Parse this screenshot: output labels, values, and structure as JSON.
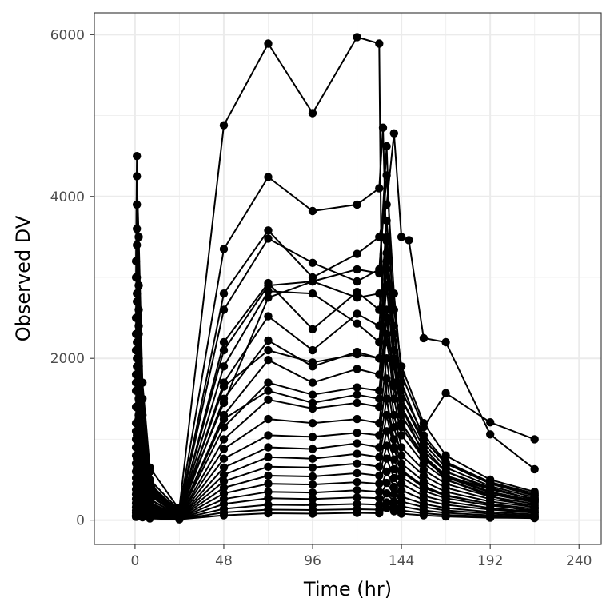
{
  "chart_data": {
    "type": "line",
    "title": "",
    "xlabel": "Time (hr)",
    "ylabel": "Observed DV",
    "xlim": [
      -22,
      252
    ],
    "ylim": [
      -300,
      6270
    ],
    "xticks": [
      0,
      48,
      96,
      144,
      192,
      240
    ],
    "xtick_labels": [
      "0",
      "48",
      "96",
      "144",
      "192",
      "240"
    ],
    "yticks": [
      0,
      2000,
      4000,
      6000
    ],
    "ytick_labels": [
      "0",
      "2000",
      "4000",
      "6000"
    ],
    "grid": true,
    "legend": "none",
    "series_color": "#000000",
    "series": [
      {
        "x": [
          0.5,
          1,
          2,
          4,
          8,
          12,
          24,
          48,
          72,
          96,
          120,
          132,
          133,
          134,
          136,
          140,
          144,
          156,
          168,
          192,
          216
        ],
        "y": [
          3200,
          4500,
          2900,
          1500,
          600,
          300,
          150,
          4880,
          5890,
          5030,
          5970,
          5890,
          3500,
          2600,
          1500,
          900,
          600,
          400,
          300,
          200,
          100
        ]
      },
      {
        "x": [
          0.5,
          1,
          2,
          4,
          8,
          24,
          48,
          72,
          96,
          120,
          132,
          134,
          136,
          140,
          144,
          156,
          168,
          192,
          216
        ],
        "y": [
          2500,
          3900,
          2600,
          1300,
          500,
          120,
          3350,
          4240,
          3820,
          3900,
          4100,
          4850,
          3200,
          2100,
          1400,
          800,
          500,
          300,
          150
        ]
      },
      {
        "x": [
          0.5,
          1,
          2,
          4,
          8,
          24,
          48,
          72,
          96,
          120,
          132,
          136,
          140,
          144,
          148,
          156,
          168,
          192,
          216
        ],
        "y": [
          2100,
          3400,
          2300,
          1200,
          450,
          100,
          2800,
          3580,
          3000,
          3290,
          3500,
          3900,
          4780,
          3500,
          3460,
          2250,
          2200,
          1060,
          630
        ]
      },
      {
        "x": [
          0.5,
          1,
          2,
          4,
          8,
          24,
          48,
          72,
          96,
          120,
          132,
          136,
          140,
          144,
          156,
          168,
          192,
          216
        ],
        "y": [
          1800,
          3000,
          2000,
          1000,
          400,
          90,
          2600,
          3480,
          3180,
          2950,
          3100,
          4260,
          2800,
          1800,
          1150,
          1570,
          1210,
          1000
        ]
      },
      {
        "x": [
          0.5,
          1,
          2,
          4,
          8,
          24,
          48,
          72,
          96,
          120,
          132,
          136,
          140,
          144,
          156,
          168,
          192,
          216
        ],
        "y": [
          1600,
          2700,
          1800,
          900,
          350,
          80,
          2200,
          2930,
          2360,
          2820,
          2600,
          3500,
          2000,
          1400,
          900,
          600,
          400,
          250
        ]
      },
      {
        "x": [
          0.5,
          1,
          2,
          4,
          8,
          24,
          48,
          72,
          96,
          120,
          132,
          136,
          140,
          144,
          156,
          168,
          192,
          216
        ],
        "y": [
          1400,
          2500,
          1600,
          800,
          320,
          70,
          1900,
          2830,
          2800,
          2430,
          2200,
          3300,
          2400,
          1700,
          1000,
          700,
          450,
          300
        ]
      },
      {
        "x": [
          0.5,
          1,
          2,
          4,
          8,
          24,
          48,
          72,
          96,
          120,
          132,
          136,
          140,
          144,
          156,
          168,
          192,
          216
        ],
        "y": [
          1200,
          2200,
          1500,
          700,
          300,
          60,
          1700,
          2520,
          2100,
          2550,
          2400,
          3700,
          2600,
          1900,
          1200,
          800,
          500,
          350
        ]
      },
      {
        "x": [
          0.5,
          1,
          2,
          4,
          8,
          24,
          48,
          72,
          96,
          120,
          132,
          136,
          140,
          144,
          156,
          168,
          192,
          216
        ],
        "y": [
          1000,
          2000,
          1300,
          600,
          250,
          60,
          1500,
          2220,
          1900,
          2080,
          2000,
          3100,
          2100,
          1500,
          950,
          650,
          420,
          280
        ]
      },
      {
        "x": [
          0.5,
          1,
          2,
          4,
          8,
          24,
          48,
          72,
          96,
          120,
          132,
          136,
          140,
          144,
          156,
          168,
          192,
          216
        ],
        "y": [
          900,
          1800,
          1200,
          550,
          220,
          50,
          1300,
          1980,
          1700,
          1870,
          1800,
          2900,
          1900,
          1300,
          850,
          600,
          380,
          260
        ]
      },
      {
        "x": [
          0.5,
          1,
          2,
          4,
          8,
          24,
          48,
          72,
          96,
          120,
          132,
          136,
          140,
          144,
          156,
          168,
          192,
          216
        ],
        "y": [
          800,
          1600,
          1100,
          500,
          200,
          50,
          1150,
          1700,
          1550,
          1640,
          1600,
          2600,
          1700,
          1200,
          780,
          550,
          350,
          240
        ]
      },
      {
        "x": [
          0.5,
          1,
          2,
          4,
          8,
          24,
          48,
          72,
          96,
          120,
          132,
          136,
          140,
          144,
          156,
          168,
          192,
          216
        ],
        "y": [
          700,
          1400,
          950,
          450,
          180,
          40,
          1000,
          1490,
          1380,
          1450,
          1400,
          2300,
          1500,
          1050,
          700,
          500,
          320,
          220
        ]
      },
      {
        "x": [
          0.5,
          1,
          2,
          4,
          8,
          24,
          48,
          72,
          96,
          120,
          132,
          136,
          140,
          144,
          156,
          168,
          192,
          216
        ],
        "y": [
          600,
          1200,
          820,
          400,
          160,
          40,
          880,
          1250,
          1200,
          1250,
          1200,
          2000,
          1300,
          900,
          620,
          450,
          290,
          200
        ]
      },
      {
        "x": [
          0.5,
          1,
          2,
          4,
          8,
          24,
          48,
          72,
          96,
          120,
          132,
          136,
          140,
          144,
          156,
          168,
          192,
          216
        ],
        "y": [
          520,
          1050,
          720,
          350,
          140,
          35,
          760,
          1050,
          1030,
          1080,
          1050,
          1750,
          1150,
          800,
          550,
          400,
          260,
          180
        ]
      },
      {
        "x": [
          0.5,
          1,
          2,
          4,
          8,
          24,
          48,
          72,
          96,
          120,
          132,
          136,
          140,
          144,
          156,
          168,
          192,
          216
        ],
        "y": [
          450,
          900,
          620,
          300,
          120,
          30,
          650,
          900,
          880,
          950,
          900,
          1500,
          1000,
          700,
          480,
          350,
          230,
          160
        ]
      },
      {
        "x": [
          0.5,
          1,
          2,
          4,
          8,
          24,
          48,
          72,
          96,
          120,
          132,
          136,
          140,
          144,
          156,
          168,
          192,
          216
        ],
        "y": [
          380,
          760,
          530,
          260,
          100,
          30,
          560,
          780,
          760,
          820,
          780,
          1300,
          880,
          620,
          420,
          310,
          200,
          140
        ]
      },
      {
        "x": [
          0.5,
          1,
          2,
          4,
          8,
          24,
          48,
          72,
          96,
          120,
          132,
          136,
          140,
          144,
          156,
          168,
          192,
          216
        ],
        "y": [
          320,
          640,
          450,
          220,
          90,
          25,
          480,
          660,
          650,
          700,
          660,
          1100,
          750,
          530,
          360,
          270,
          180,
          120
        ]
      },
      {
        "x": [
          0.5,
          1,
          2,
          4,
          8,
          24,
          48,
          72,
          96,
          120,
          132,
          136,
          140,
          144,
          156,
          168,
          192,
          216
        ],
        "y": [
          260,
          530,
          370,
          180,
          75,
          25,
          400,
          550,
          540,
          580,
          550,
          920,
          630,
          450,
          300,
          230,
          150,
          100
        ]
      },
      {
        "x": [
          0.5,
          1,
          2,
          4,
          8,
          24,
          48,
          72,
          96,
          120,
          132,
          136,
          140,
          144,
          156,
          168,
          192,
          216
        ],
        "y": [
          210,
          420,
          300,
          150,
          60,
          20,
          330,
          450,
          440,
          470,
          450,
          760,
          520,
          370,
          250,
          190,
          130,
          90
        ]
      },
      {
        "x": [
          0.5,
          1,
          2,
          4,
          8,
          24,
          48,
          72,
          96,
          120,
          132,
          136,
          140,
          144,
          156,
          168,
          192,
          216
        ],
        "y": [
          160,
          330,
          240,
          120,
          50,
          20,
          260,
          350,
          340,
          370,
          350,
          600,
          410,
          290,
          200,
          150,
          100,
          70
        ]
      },
      {
        "x": [
          0.5,
          1,
          2,
          4,
          8,
          24,
          48,
          72,
          96,
          120,
          132,
          136,
          140,
          144,
          156,
          168,
          192,
          216
        ],
        "y": [
          120,
          250,
          180,
          90,
          40,
          15,
          200,
          270,
          260,
          280,
          270,
          460,
          320,
          230,
          160,
          120,
          80,
          55
        ]
      },
      {
        "x": [
          0.5,
          1,
          2,
          4,
          8,
          24,
          48,
          72,
          96,
          120,
          132,
          136,
          140,
          144,
          156,
          168,
          192,
          216
        ],
        "y": [
          90,
          180,
          130,
          70,
          30,
          15,
          140,
          190,
          185,
          200,
          190,
          330,
          230,
          170,
          120,
          90,
          60,
          45
        ]
      },
      {
        "x": [
          0.5,
          1,
          2,
          4,
          8,
          24,
          48,
          72,
          96,
          120,
          132,
          136,
          140,
          144,
          156,
          168,
          192,
          216
        ],
        "y": [
          60,
          120,
          90,
          50,
          25,
          10,
          95,
          130,
          125,
          135,
          130,
          220,
          160,
          120,
          85,
          65,
          45,
          35
        ]
      },
      {
        "x": [
          0.5,
          1,
          2,
          4,
          8,
          24,
          48,
          72,
          96,
          120,
          132,
          136,
          140,
          144,
          156,
          168,
          192,
          216
        ],
        "y": [
          40,
          80,
          60,
          35,
          20,
          10,
          60,
          85,
          80,
          90,
          85,
          150,
          110,
          80,
          60,
          45,
          30,
          25
        ]
      },
      {
        "x": [
          0.5,
          1,
          2,
          4,
          8,
          24,
          48,
          72,
          96,
          120,
          132,
          136,
          140,
          144,
          156,
          168,
          192,
          216
        ],
        "y": [
          2300,
          3600,
          2400,
          1100,
          420,
          95,
          2100,
          2900,
          2950,
          2750,
          2800,
          2200,
          1700,
          1200,
          800,
          550,
          380,
          260
        ]
      },
      {
        "x": [
          0.5,
          1,
          2,
          4,
          8,
          24,
          48,
          72,
          96,
          120,
          132,
          136,
          140,
          144,
          156,
          168,
          192,
          216
        ],
        "y": [
          1700,
          2800,
          1900,
          950,
          380,
          85,
          1650,
          2100,
          1950,
          2050,
          2000,
          3450,
          2300,
          1600,
          1050,
          720,
          470,
          330
        ]
      },
      {
        "x": [
          0.5,
          1,
          2,
          4,
          8,
          24,
          48,
          72,
          96,
          120,
          132,
          136,
          140,
          144,
          156,
          168,
          192,
          216
        ],
        "y": [
          1100,
          1900,
          1250,
          650,
          260,
          55,
          1250,
          1600,
          1450,
          1550,
          1500,
          2500,
          1650,
          1150,
          760,
          530,
          340,
          230
        ]
      },
      {
        "x": [
          0.5,
          1,
          2,
          4,
          8,
          24,
          48,
          72,
          96,
          120,
          132,
          136,
          140,
          144,
          156,
          168,
          192,
          216
        ],
        "y": [
          3000,
          4250,
          3500,
          1700,
          650,
          130,
          1450,
          2750,
          2950,
          3100,
          3050,
          4620,
          2000,
          1500,
          1000,
          700,
          460,
          310
        ]
      }
    ]
  }
}
